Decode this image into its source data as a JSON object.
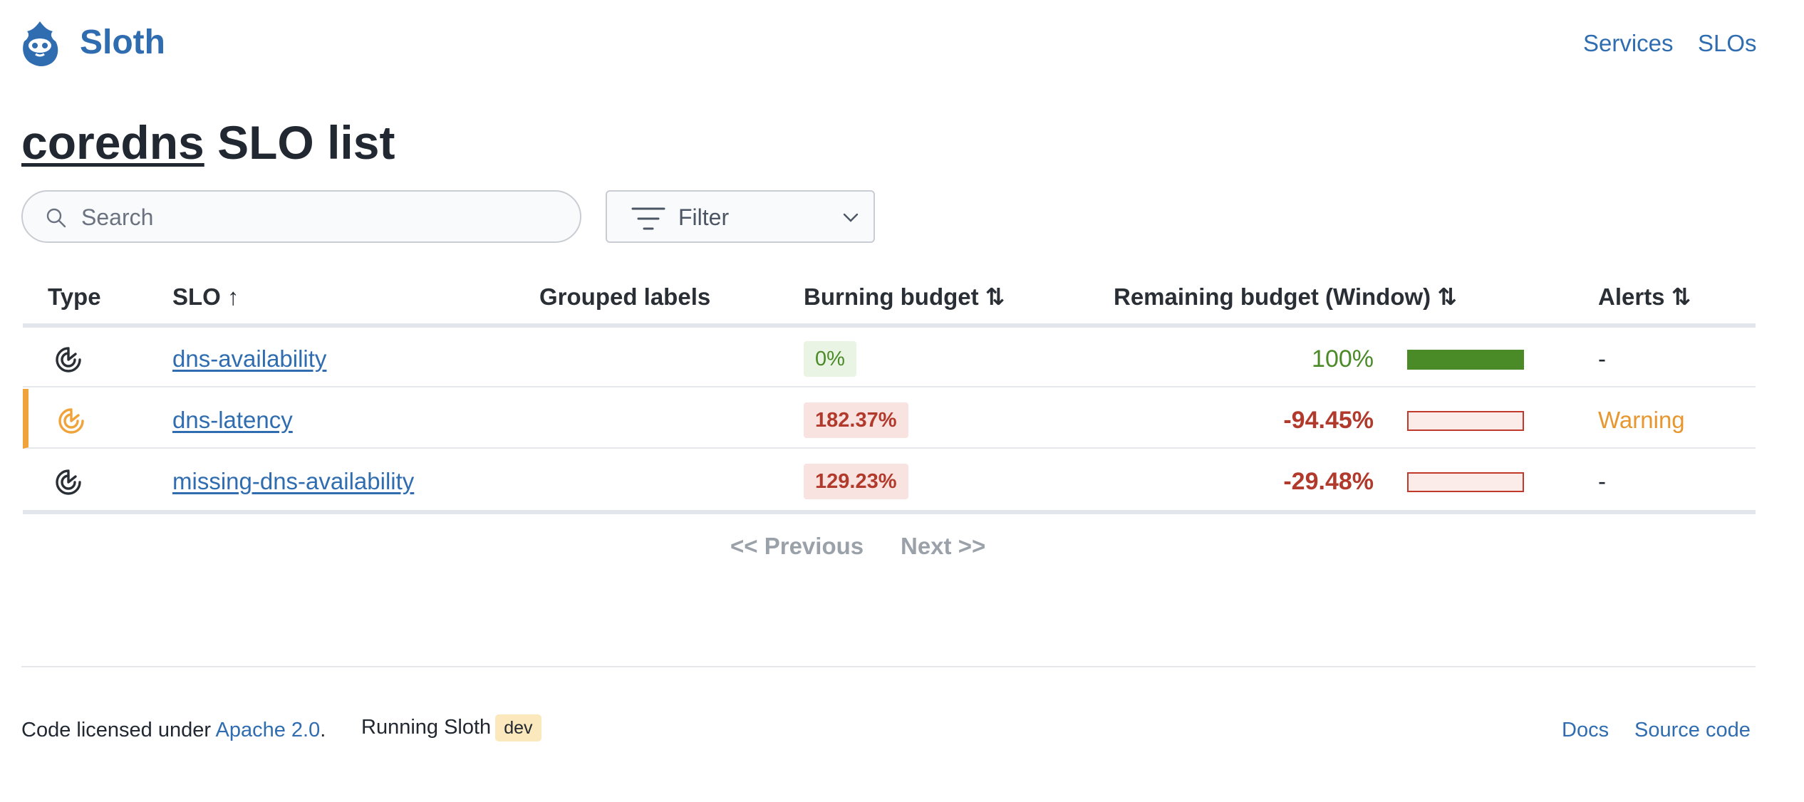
{
  "header": {
    "brand": "Sloth",
    "nav": [
      "Services",
      "SLOs"
    ]
  },
  "title": {
    "service": "coredns",
    "suffix": " SLO list"
  },
  "search": {
    "placeholder": "Search",
    "value": ""
  },
  "filter": {
    "label": "Filter"
  },
  "table": {
    "columns": [
      "Type",
      "SLO ↑",
      "Grouped labels",
      "Burning budget ⇅",
      "Remaining budget (Window) ⇅",
      "Alerts ⇅"
    ],
    "rows": [
      {
        "slo": "dns-availability",
        "grouped_labels": "",
        "burning": "0%",
        "remaining": "100%",
        "remaining_fraction": 1.0,
        "alerts": "-",
        "status": "ok"
      },
      {
        "slo": "dns-latency",
        "grouped_labels": "",
        "burning": "182.37%",
        "remaining": "-94.45%",
        "remaining_fraction": 0.0,
        "alerts": "Warning",
        "status": "warning"
      },
      {
        "slo": "missing-dns-availability",
        "grouped_labels": "",
        "burning": "129.23%",
        "remaining": "-29.48%",
        "remaining_fraction": 0.0,
        "alerts": "-",
        "status": "ok"
      }
    ]
  },
  "pagination": {
    "previous": "<< Previous",
    "next": "Next >>"
  },
  "footer": {
    "license_prefix": "Code licensed under ",
    "license_link": "Apache 2.0",
    "license_suffix": ".",
    "running_label": "Running Sloth",
    "version_badge": "dev",
    "links": [
      "Docs",
      "Source code"
    ]
  },
  "colors": {
    "brand": "#2f6db0",
    "ok": "#4a8a27",
    "bad": "#b23a2c",
    "warning": "#e8972f"
  }
}
